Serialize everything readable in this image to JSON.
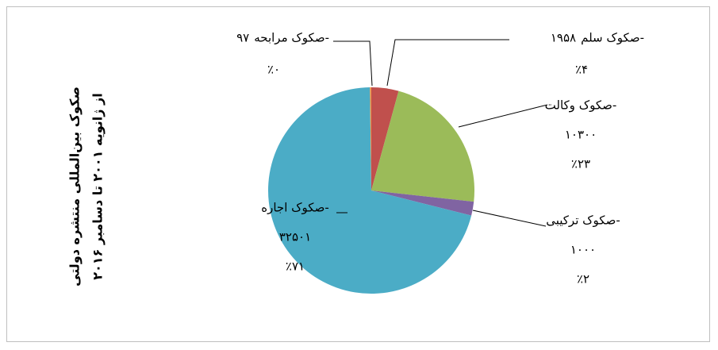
{
  "chart_data": {
    "type": "pie",
    "title": "صکوک بین‌المللی منتشره دولتی",
    "subtitle": "از ژانویه ۲۰۰۱ تا دسامبر ۲۰۱۶",
    "categories": [
      "صکوک سلم-",
      "صکوک وکالت-",
      "صکوک ترکیبی-",
      "صکوک اجاره-",
      "صکوک مرابحه-"
    ],
    "values": [
      1958,
      10300,
      1000,
      32501,
      97
    ],
    "value_labels": [
      "۱۹۵۸",
      "۱۰۳۰۰",
      "۱۰۰۰",
      "۳۲۵۰۱",
      "۹۷"
    ],
    "percent_labels": [
      "٪۴",
      "٪۲۳",
      "٪۲",
      "٪۷۱",
      "٪۰"
    ],
    "colors": [
      "#c0504d",
      "#9bbb59",
      "#8064a2",
      "#4bacc6",
      "#f79646"
    ]
  }
}
